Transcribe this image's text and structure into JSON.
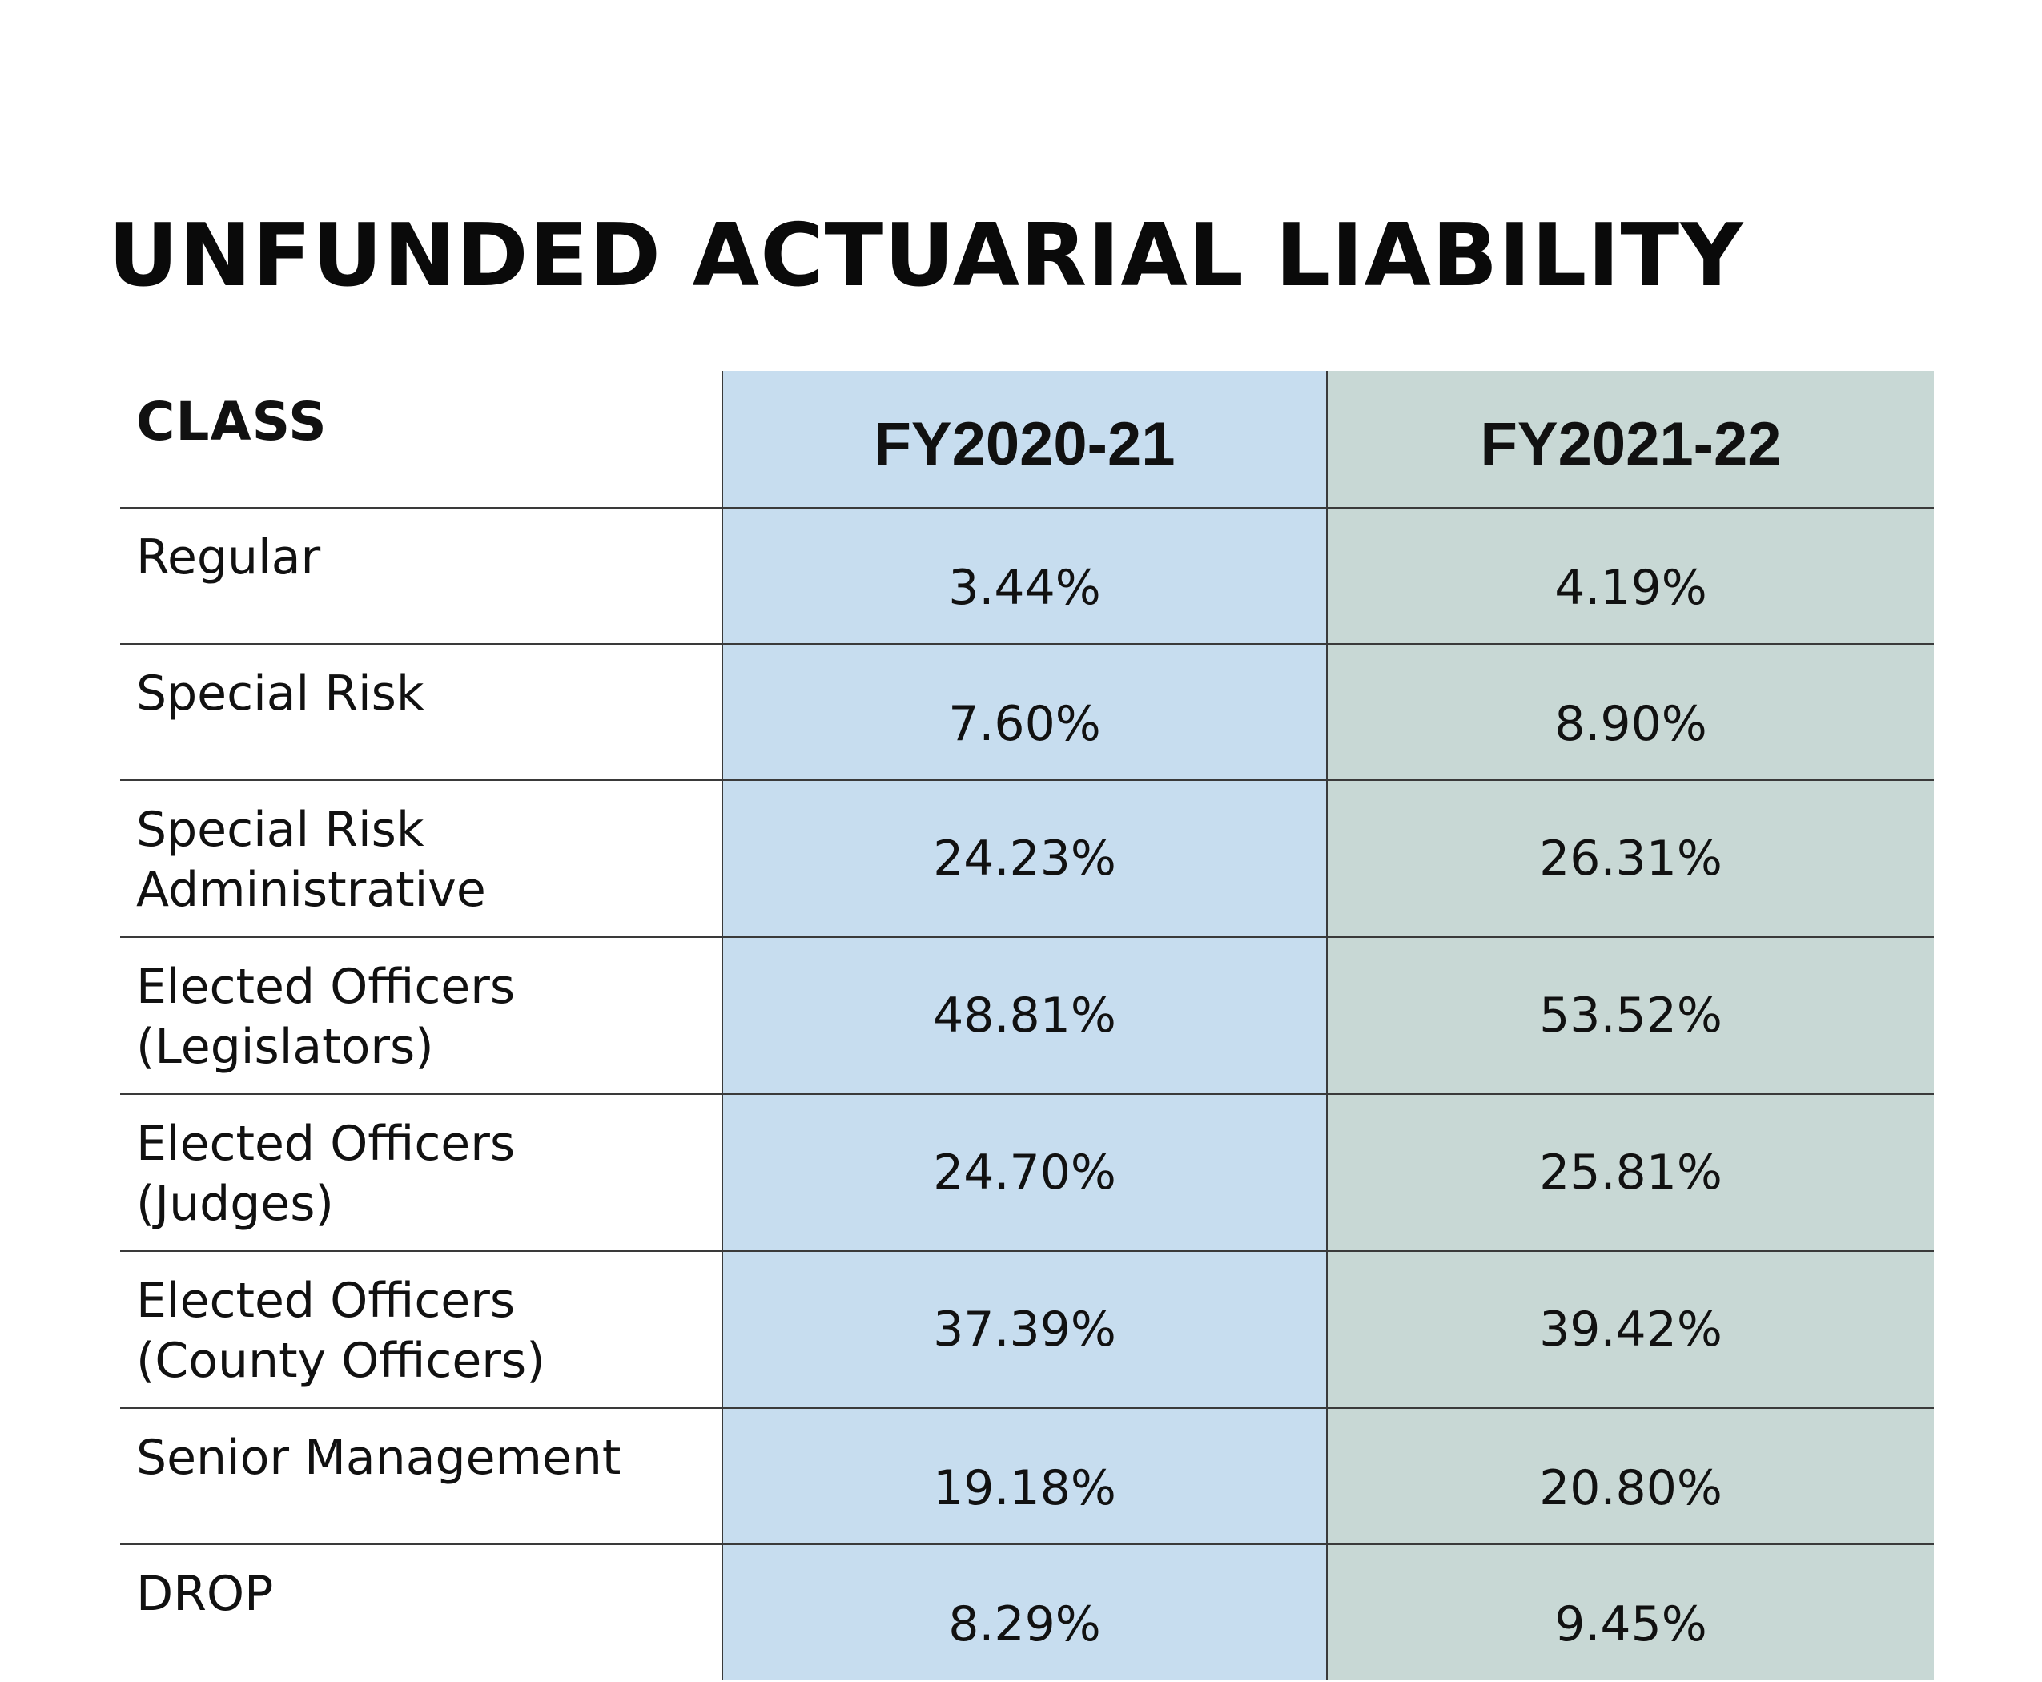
{
  "title": "UNFUNDED ACTUARIAL LIABILITY",
  "table": {
    "headers": {
      "class": "CLASS",
      "fy2020_21": "FY2020-21",
      "fy2021_22": "FY2021-22"
    },
    "rows": [
      {
        "class_line1": "Regular",
        "class_line2": "",
        "fy2020_21": "3.44%",
        "fy2021_22": "4.19%"
      },
      {
        "class_line1": "Special Risk",
        "class_line2": "",
        "fy2020_21": "7.60%",
        "fy2021_22": "8.90%"
      },
      {
        "class_line1": "Special Risk",
        "class_line2": "Administrative",
        "fy2020_21": "24.23%",
        "fy2021_22": "26.31%"
      },
      {
        "class_line1": "Elected Officers",
        "class_line2": "(Legislators)",
        "fy2020_21": "48.81%",
        "fy2021_22": "53.52%"
      },
      {
        "class_line1": "Elected Officers",
        "class_line2": "(Judges)",
        "fy2020_21": "24.70%",
        "fy2021_22": "25.81%"
      },
      {
        "class_line1": "Elected Officers",
        "class_line2": "(County Officers)",
        "fy2020_21": "37.39%",
        "fy2021_22": "39.42%"
      },
      {
        "class_line1": "Senior Management",
        "class_line2": "",
        "fy2020_21": "19.18%",
        "fy2021_22": "20.80%"
      },
      {
        "class_line1": "DROP",
        "class_line2": "",
        "fy2020_21": "8.29%",
        "fy2021_22": "9.45%"
      }
    ]
  },
  "colors": {
    "fy2020_21_column": "#c7ddef",
    "fy2021_22_column": "#c8d8d5",
    "rule_lines": "#3a3a3a"
  }
}
